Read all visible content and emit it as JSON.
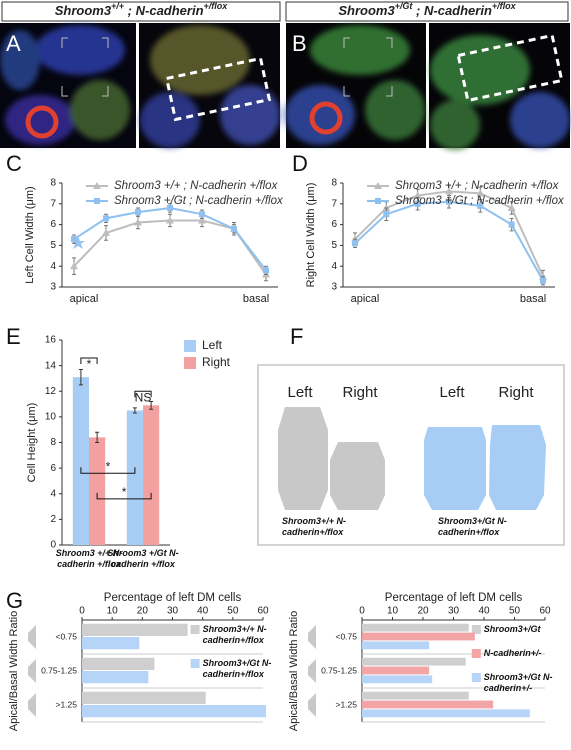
{
  "panel_labels": [
    "A",
    "B",
    "C",
    "D",
    "E",
    "F",
    "G"
  ],
  "headers": [
    {
      "gene": "Shroom3",
      "gene_sup": "+/+",
      "allele": " ; N-cadherin",
      "allele_sup": "+/flox"
    },
    {
      "gene": "Shroom3",
      "gene_sup": "+/Gt",
      "allele": " ; N-cadherin",
      "allele_sup": "+/flox"
    }
  ],
  "diagram": {
    "labels": [
      "Left",
      "Right",
      "Left",
      "Right"
    ],
    "captions": [
      "Shroom3+/+ N-cadherin+/flox",
      "Shroom3+/Gt N-cadherin+/flox"
    ]
  },
  "chart_data": [
    {
      "type": "line",
      "y_label": "Left Cell Width (μm)",
      "categories": [
        "apical",
        null,
        null,
        null,
        null,
        null,
        "basal"
      ],
      "ylim": [
        3,
        8
      ],
      "yticks": [
        3,
        4,
        5,
        6,
        7,
        8
      ],
      "series": [
        {
          "name": "Shroom3 +/+ ; N-cadherin +/flox",
          "color": "#bdbdbd",
          "marker": "triangle",
          "values": [
            4.0,
            5.6,
            6.1,
            6.2,
            6.2,
            5.8,
            3.6
          ],
          "errors": [
            0.4,
            0.35,
            0.3,
            0.3,
            0.3,
            0.3,
            0.3
          ]
        },
        {
          "name": "Shroom3 +/Gt ; N-cadherin +/flox",
          "color": "#8ec0f0",
          "marker": "square",
          "values": [
            5.3,
            6.3,
            6.6,
            6.8,
            6.5,
            5.8,
            3.8
          ],
          "errors": [
            0.2,
            0.2,
            0.2,
            0.2,
            0.2,
            0.2,
            0.2
          ]
        }
      ]
    },
    {
      "type": "line",
      "y_label": "Right Cell Width (μm)",
      "categories": [
        "apical",
        null,
        null,
        null,
        null,
        null,
        "basal"
      ],
      "ylim": [
        3,
        8
      ],
      "yticks": [
        3,
        4,
        5,
        6,
        7,
        8
      ],
      "series": [
        {
          "name": "Shroom3 +/+ ; N-cadherin +/flox",
          "color": "#bdbdbd",
          "marker": "triangle",
          "values": [
            5.3,
            6.8,
            7.4,
            7.6,
            7.5,
            6.8,
            3.5
          ],
          "errors": [
            0.3,
            0.3,
            0.3,
            0.3,
            0.3,
            0.3,
            0.3
          ]
        },
        {
          "name": "Shroom3 +/Gt ; N-cadherin +/flox",
          "color": "#8ec0f0",
          "marker": "square",
          "values": [
            5.1,
            6.5,
            7.0,
            7.1,
            6.9,
            6.0,
            3.3
          ],
          "errors": [
            0.2,
            0.3,
            0.3,
            0.3,
            0.3,
            0.3,
            0.2
          ]
        }
      ]
    },
    {
      "type": "bar",
      "y_label": "Cell Height (μm)",
      "categories": [
        "Shroom3 +/+ N-cadherin +/flox",
        "Shroom3 +/Gt N-cadherin +/flox"
      ],
      "ylim": [
        0,
        16
      ],
      "yticks": [
        0,
        2,
        4,
        6,
        8,
        10,
        12,
        14,
        16
      ],
      "annotations": [
        "*",
        "NS",
        "*",
        "*"
      ],
      "series": [
        {
          "name": "Left",
          "color": "#a8cdf5",
          "values": [
            13.1,
            10.5
          ],
          "errors": [
            0.6,
            0.2
          ]
        },
        {
          "name": "Right",
          "color": "#f3a0a0",
          "values": [
            8.4,
            10.9
          ],
          "errors": [
            0.4,
            0.3
          ]
        }
      ]
    },
    {
      "type": "barh",
      "x_label": "Percentage of left DM cells",
      "y_label": "Apical/Basal Width Ratio",
      "categories": [
        "<0.75",
        "0.75-1.25",
        ">1.25"
      ],
      "xlim": [
        0,
        60
      ],
      "xticks": [
        0,
        10,
        20,
        30,
        40,
        50,
        60
      ],
      "series": [
        {
          "name": "Shroom3+/+ N-cadherin+/flox",
          "color": "#cfcfcf",
          "values": [
            35,
            24,
            41
          ]
        },
        {
          "name": "Shroom3+/Gt N-cadherin+/flox",
          "color": "#b5d4f7",
          "values": [
            19,
            22,
            61
          ]
        }
      ]
    },
    {
      "type": "barh",
      "x_label": "Percentage of left DM cells",
      "y_label": "Apical/Basal Width Ratio",
      "categories": [
        "<0.75",
        "0.75-1.25",
        ">1.25"
      ],
      "xlim": [
        0,
        60
      ],
      "xticks": [
        0,
        10,
        20,
        30,
        40,
        50,
        60
      ],
      "series": [
        {
          "name": "Shroom3+/Gt",
          "color": "#cfcfcf",
          "values": [
            35,
            34,
            35
          ]
        },
        {
          "name": "N-cadherin+/-",
          "color": "#f3a5a5",
          "values": [
            37,
            22,
            43
          ]
        },
        {
          "name": "Shroom3+/Gt N-cadherin+/-",
          "color": "#b5d4f7",
          "values": [
            22,
            23,
            55
          ]
        }
      ]
    }
  ]
}
